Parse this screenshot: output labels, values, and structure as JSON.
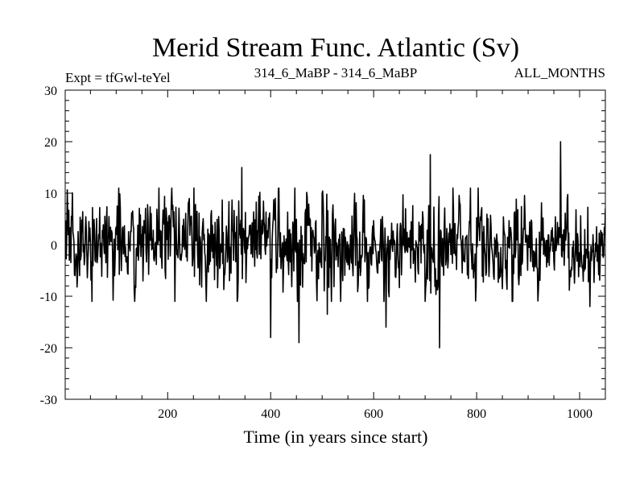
{
  "chart_data": {
    "type": "line",
    "title": "Merid Stream Func. Atlantic (Sv)",
    "subtitle_left": "Expt = tfGwl-teYel",
    "subtitle_center": "314_6_MaBP - 314_6_MaBP",
    "subtitle_right": "ALL_MONTHS",
    "xlabel": "Time (in years since start)",
    "ylabel": "",
    "xlim": [
      1,
      1050
    ],
    "ylim": [
      -30,
      30
    ],
    "xticks": [
      200,
      400,
      600,
      800,
      1000
    ],
    "yticks": [
      -30,
      -20,
      -10,
      0,
      10,
      20,
      30
    ],
    "grid": false,
    "zero_line": true,
    "colors": {
      "line": "#000000",
      "axes": "#000000",
      "background": "#ffffff"
    },
    "series": [
      {
        "n_points": 1050,
        "x_start": 1,
        "x_step": 1,
        "approx_std": 4.5,
        "extremes": [
          {
            "x": 338,
            "y": 8.5
          },
          {
            "x": 344,
            "y": 15
          },
          {
            "x": 400,
            "y": -18
          },
          {
            "x": 455,
            "y": -19
          },
          {
            "x": 510,
            "y": -13.5
          },
          {
            "x": 624,
            "y": -16
          },
          {
            "x": 710,
            "y": 17.5
          },
          {
            "x": 728,
            "y": -20
          },
          {
            "x": 963,
            "y": 20
          },
          {
            "x": 1020,
            "y": -12
          }
        ]
      }
    ]
  }
}
